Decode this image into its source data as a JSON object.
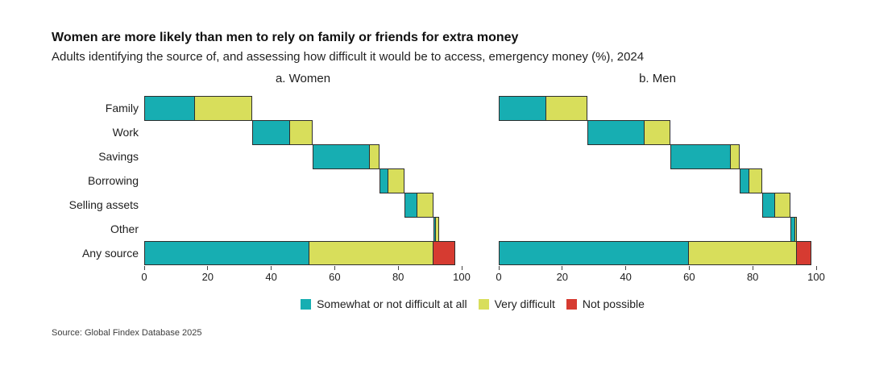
{
  "title": "Women are more likely than men to rely on family or friends for extra money",
  "subtitle": "Adults identifying the source of, and assessing how difficult it would be to access, emergency money (%), 2024",
  "source": "Source: Global Findex Database 2025",
  "colors": {
    "somewhat": "#17aeb2",
    "very": "#d8de5b",
    "not_possible": "#d63b31",
    "bar_border": "#2e2e2e"
  },
  "legend": {
    "items": [
      {
        "key": "somewhat",
        "label": "Somewhat or not difficult at all"
      },
      {
        "key": "very",
        "label": "Very difficult"
      },
      {
        "key": "not_possible",
        "label": "Not possible"
      }
    ]
  },
  "axis": {
    "ticks": [
      0,
      20,
      40,
      60,
      80,
      100
    ],
    "min": 0,
    "max": 100
  },
  "chart_data": [
    {
      "type": "bar",
      "variant": "horizontal-stacked-waterfall",
      "title": "a. Women",
      "show_category_labels": true,
      "categories": [
        "Family",
        "Work",
        "Savings",
        "Borrowing",
        "Selling assets",
        "Other",
        "Any source"
      ],
      "reset_categories": [
        "Any source"
      ],
      "series": [
        {
          "key": "somewhat",
          "name": "Somewhat or not difficult at all",
          "values": [
            16,
            12,
            18,
            3,
            4,
            0.8,
            52
          ]
        },
        {
          "key": "very",
          "name": "Very difficult",
          "values": [
            18,
            7,
            3,
            5,
            5,
            1,
            39
          ]
        },
        {
          "key": "not_possible",
          "name": "Not possible",
          "values": [
            0,
            0,
            0,
            0,
            0,
            0,
            7
          ]
        }
      ],
      "xlim": [
        0,
        100
      ]
    },
    {
      "type": "bar",
      "variant": "horizontal-stacked-waterfall",
      "title": "b. Men",
      "show_category_labels": false,
      "categories": [
        "Family",
        "Work",
        "Savings",
        "Borrowing",
        "Selling assets",
        "Other",
        "Any source"
      ],
      "reset_categories": [
        "Any source"
      ],
      "series": [
        {
          "key": "somewhat",
          "name": "Somewhat or not difficult at all",
          "values": [
            15,
            18,
            19,
            3,
            4,
            1.3,
            60
          ]
        },
        {
          "key": "very",
          "name": "Very difficult",
          "values": [
            13,
            8,
            3,
            4,
            5,
            0.7,
            34
          ]
        },
        {
          "key": "not_possible",
          "name": "Not possible",
          "values": [
            0,
            0,
            0,
            0,
            0,
            0,
            4.5
          ]
        }
      ],
      "xlim": [
        0,
        100
      ]
    }
  ]
}
